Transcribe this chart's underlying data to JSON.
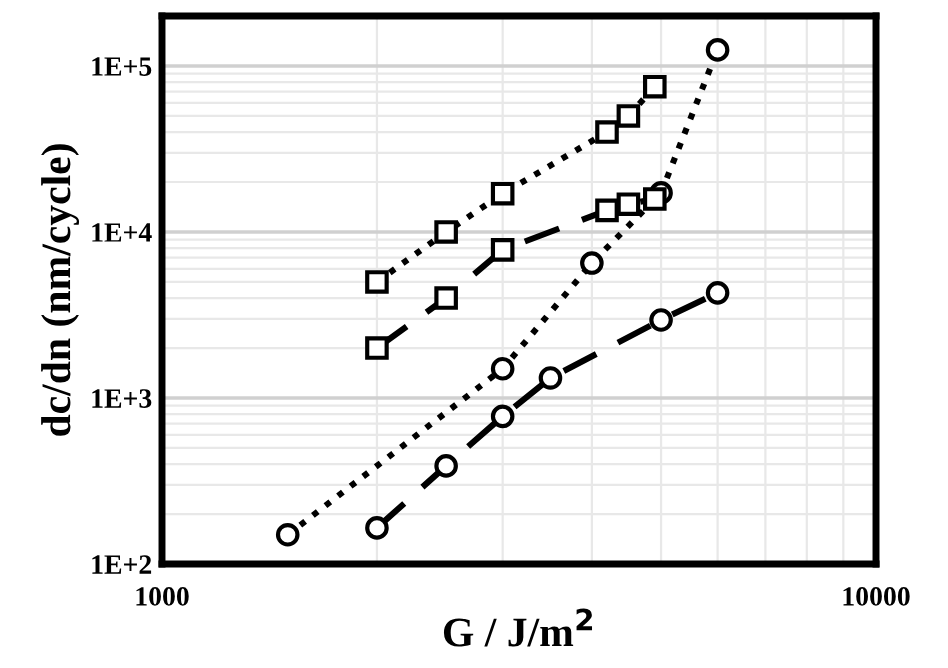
{
  "chart_data": {
    "type": "line",
    "xlabel": "G / J/m$^{2}$",
    "ylabel": "dc/dn (nm/cycle)",
    "log": "xy",
    "xlim": [
      1000,
      10000
    ],
    "ylim": [
      100,
      200000
    ],
    "xticks": [
      1000,
      10000
    ],
    "yticks": [
      {
        "value": 100,
        "label": "1E+2"
      },
      {
        "value": 1000,
        "label": "1E+3"
      },
      {
        "value": 10000,
        "label": "1E+4"
      },
      {
        "value": 100000,
        "label": "1E+5"
      }
    ],
    "grid": true,
    "legend": false,
    "series": [
      {
        "color": "#000000",
        "marker": "square",
        "line_style": "dotted",
        "x": [
          2000,
          2500,
          3000,
          4200,
          4500,
          4900
        ],
        "values": [
          5000,
          10000,
          17000,
          40000,
          50000,
          75000
        ]
      },
      {
        "color": "#000000",
        "marker": "square",
        "line_style": "dashed",
        "x": [
          2000,
          2500,
          3000,
          4200,
          4500,
          4900
        ],
        "values": [
          2000,
          4000,
          7800,
          13500,
          14700,
          15800
        ]
      },
      {
        "color": "#000000",
        "marker": "circle",
        "line_style": "dotted",
        "x": [
          1500,
          3000,
          4000,
          5000,
          6000
        ],
        "values": [
          150,
          1500,
          6500,
          17200,
          125000
        ]
      },
      {
        "color": "#000000",
        "marker": "circle",
        "line_style": "dashed",
        "x": [
          2000,
          2500,
          3000,
          3500,
          5000,
          6000
        ],
        "values": [
          165,
          390,
          775,
          1320,
          2950,
          4300
        ]
      }
    ]
  }
}
